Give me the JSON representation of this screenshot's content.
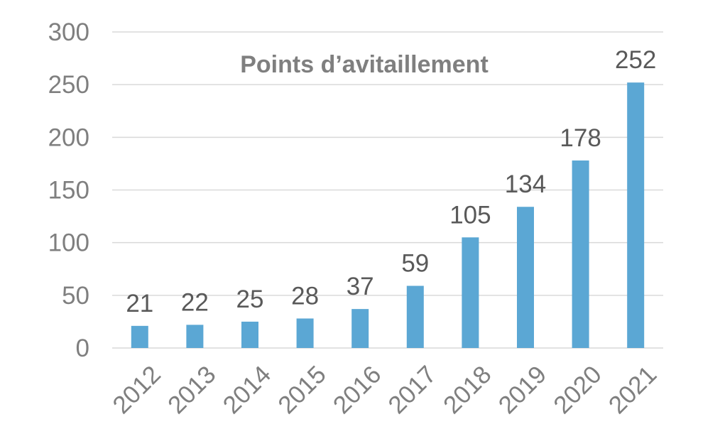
{
  "chart_data": {
    "type": "bar",
    "title": "Points d’avitaillement",
    "categories": [
      "2012",
      "2013",
      "2014",
      "2015",
      "2016",
      "2017",
      "2018",
      "2019",
      "2020",
      "2021"
    ],
    "series": [
      {
        "values": [
          21,
          22,
          25,
          28,
          37,
          59,
          105,
          134,
          178,
          252
        ]
      }
    ],
    "data_labels": [
      "21",
      "22",
      "25",
      "28",
      "37",
      "59",
      "105",
      "134",
      "178",
      "252"
    ],
    "y_ticks": [
      "0",
      "50",
      "100",
      "150",
      "200",
      "250",
      "300"
    ],
    "ylim": [
      0,
      300
    ],
    "xlabel": "",
    "ylabel": "",
    "grid": true,
    "legend": "none",
    "bar_color": "#5ba7d4"
  }
}
